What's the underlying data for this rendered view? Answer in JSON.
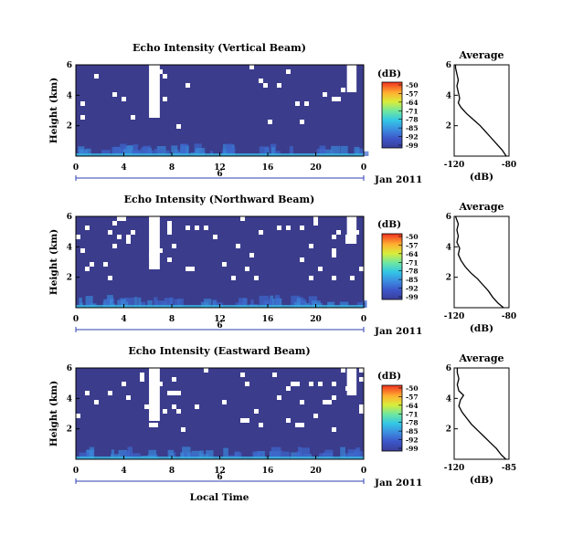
{
  "chart_data": [
    {
      "type": "heatmap",
      "title": "Echo Intensity (Vertical Beam)",
      "ylabel": "Height (km)",
      "x_ticks": [
        "0",
        "4",
        "8",
        "12",
        "16",
        "20",
        "0"
      ],
      "y_ticks": [
        "6",
        "4",
        "2"
      ],
      "xlim": [
        0,
        24
      ],
      "ylim": [
        0,
        6
      ],
      "date_tick": "6",
      "date_label": "Jan 2011",
      "colorbar": {
        "unit": "(dB)",
        "ticks": [
          "-50",
          "-57",
          "-64",
          "-71",
          "-78",
          "-85",
          "-92",
          "-99"
        ]
      },
      "missing_fraction": 0.06,
      "profile": {
        "title": "Average",
        "xlabel": "(dB)",
        "x_ticks": [
          "-120",
          "-80"
        ],
        "xlim": [
          -120,
          -80
        ],
        "y_ticks": [
          "6",
          "4",
          "2"
        ],
        "points": [
          [
            -82,
            0.0
          ],
          [
            -85,
            0.4
          ],
          [
            -89,
            0.8
          ],
          [
            -93,
            1.2
          ],
          [
            -97,
            1.6
          ],
          [
            -101,
            2.0
          ],
          [
            -106,
            2.4
          ],
          [
            -111,
            2.8
          ],
          [
            -115,
            3.2
          ],
          [
            -117,
            3.5
          ],
          [
            -116,
            3.8
          ],
          [
            -117,
            4.2
          ],
          [
            -118,
            4.6
          ],
          [
            -117,
            5.0
          ],
          [
            -118,
            5.4
          ],
          [
            -119,
            5.8
          ],
          [
            -119,
            6.0
          ]
        ]
      }
    },
    {
      "type": "heatmap",
      "title": "Echo Intensity (Northward Beam)",
      "ylabel": "Height (km)",
      "x_ticks": [
        "0",
        "4",
        "8",
        "12",
        "16",
        "20",
        "0"
      ],
      "y_ticks": [
        "6",
        "4",
        "2"
      ],
      "xlim": [
        0,
        24
      ],
      "ylim": [
        0,
        6
      ],
      "date_tick": "6",
      "date_label": "Jan 2011",
      "colorbar": {
        "unit": "(dB)",
        "ticks": [
          "-50",
          "-57",
          "-64",
          "-71",
          "-78",
          "-85",
          "-92",
          "-99"
        ]
      },
      "missing_fraction": 0.14,
      "profile": {
        "title": "Average",
        "xlabel": "(dB)",
        "x_ticks": [
          "-120",
          "-80"
        ],
        "xlim": [
          -120,
          -80
        ],
        "y_ticks": [
          "6",
          "4",
          "2"
        ],
        "points": [
          [
            -84,
            0.0
          ],
          [
            -88,
            0.3
          ],
          [
            -92,
            0.7
          ],
          [
            -95,
            1.1
          ],
          [
            -99,
            1.5
          ],
          [
            -103,
            1.9
          ],
          [
            -108,
            2.3
          ],
          [
            -112,
            2.7
          ],
          [
            -115,
            3.1
          ],
          [
            -117,
            3.5
          ],
          [
            -116,
            3.9
          ],
          [
            -118,
            4.3
          ],
          [
            -117,
            4.7
          ],
          [
            -118,
            5.1
          ],
          [
            -117,
            5.5
          ],
          [
            -119,
            6.0
          ]
        ]
      }
    },
    {
      "type": "heatmap",
      "title": "Echo Intensity (Eastward Beam)",
      "ylabel": "Height (km)",
      "x_ticks": [
        "0",
        "4",
        "8",
        "12",
        "16",
        "20",
        "0"
      ],
      "y_ticks": [
        "6",
        "4",
        "2"
      ],
      "xlim": [
        0,
        24
      ],
      "ylim": [
        0,
        6
      ],
      "date_tick": "6",
      "date_label": "Jan 2011",
      "xlabel": "Local Time",
      "colorbar": {
        "unit": "(dB)",
        "ticks": [
          "-50",
          "-57",
          "-64",
          "-71",
          "-78",
          "-85",
          "-92",
          "-99"
        ]
      },
      "missing_fraction": 0.13,
      "profile": {
        "title": "Average",
        "xlabel": "(dB)",
        "x_ticks": [
          "-120",
          "-85"
        ],
        "xlim": [
          -120,
          -85
        ],
        "y_ticks": [
          "6",
          "4",
          "2"
        ],
        "points": [
          [
            -87,
            0.0
          ],
          [
            -90,
            0.3
          ],
          [
            -93,
            0.7
          ],
          [
            -97,
            1.1
          ],
          [
            -101,
            1.5
          ],
          [
            -105,
            1.9
          ],
          [
            -109,
            2.3
          ],
          [
            -112,
            2.7
          ],
          [
            -115,
            3.1
          ],
          [
            -117,
            3.5
          ],
          [
            -116,
            3.9
          ],
          [
            -114,
            4.2
          ],
          [
            -117,
            4.5
          ],
          [
            -118,
            4.9
          ],
          [
            -117,
            5.3
          ],
          [
            -118,
            5.7
          ],
          [
            -118,
            6.0
          ]
        ]
      }
    }
  ]
}
